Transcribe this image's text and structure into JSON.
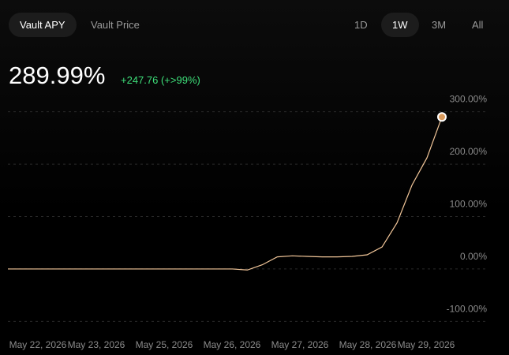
{
  "tabs": {
    "items": [
      "Vault APY",
      "Vault Price"
    ],
    "selected": 0
  },
  "ranges": {
    "items": [
      "1D",
      "1W",
      "3M",
      "All"
    ],
    "selected": 1
  },
  "header": {
    "value": "289.99%",
    "change": "+247.76 (+>99%)"
  },
  "chart_data": {
    "type": "line",
    "values": [
      0,
      0,
      0,
      0,
      0,
      0,
      0,
      0,
      0,
      0,
      0,
      0,
      0,
      0,
      0,
      0,
      -2,
      8,
      23,
      25,
      24,
      23,
      23,
      24,
      27,
      42,
      88,
      160,
      212,
      289.99
    ],
    "color": "#f3c79a",
    "ylim": [
      -110,
      310
    ],
    "yticks": [
      {
        "value": 300,
        "label": "300.00%"
      },
      {
        "value": 200,
        "label": "200.00%"
      },
      {
        "value": 100,
        "label": "100.00%"
      },
      {
        "value": 0,
        "label": "0.00%"
      },
      {
        "value": -100,
        "label": "-100.00%"
      }
    ],
    "grid": true,
    "x_labels": [
      "May 22, 2026",
      "May 23, 2026",
      "May 25, 2026",
      "May 26, 2026",
      "May 27, 2026",
      "May 28, 2026",
      "May 29, 2026"
    ]
  }
}
